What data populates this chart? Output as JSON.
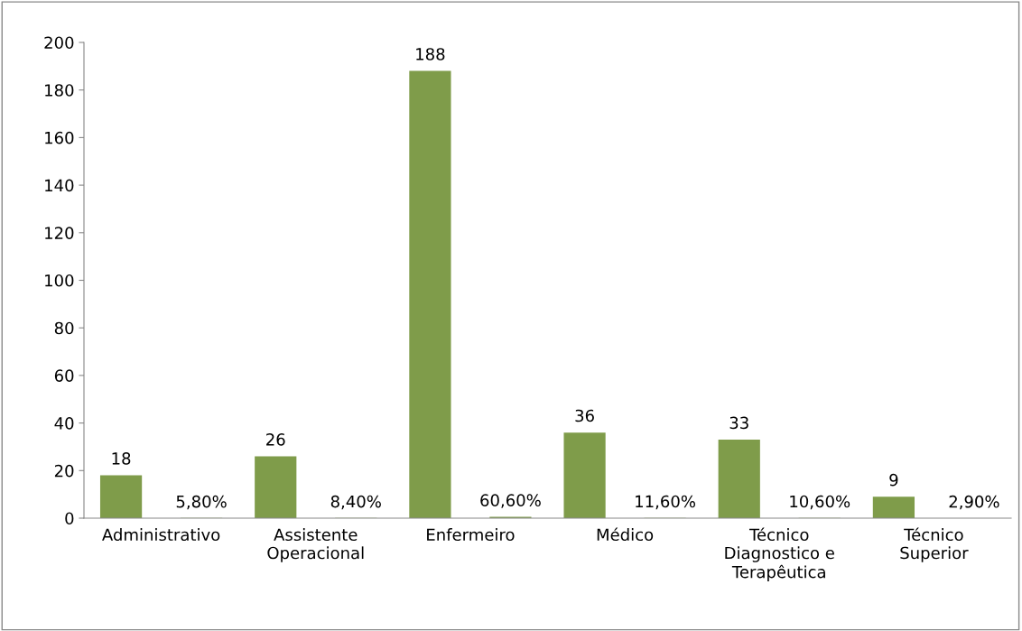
{
  "chart_data": {
    "type": "bar",
    "categories": [
      "Administrativo",
      "Assistente\nOperacional",
      "Enfermeiro",
      "Médico",
      "Técnico\nDiagnostico e\nTerapêutica",
      "Técnico\nSuperior"
    ],
    "series": [
      {
        "color": "#7f9c4a",
        "values": [
          18,
          26,
          188,
          36,
          33,
          9
        ],
        "value_labels": [
          "18",
          "26",
          "188",
          "36",
          "33",
          "9"
        ]
      },
      {
        "color": "#7f9c4a",
        "values": [
          0.058,
          0.084,
          0.606,
          0.116,
          0.106,
          0.029
        ],
        "value_labels": [
          "5,80%",
          "8,40%",
          "60,60%",
          "11,60%",
          "10,60%",
          "2,90%"
        ]
      }
    ],
    "ylim": [
      0,
      200
    ],
    "yticks": [
      0,
      20,
      40,
      60,
      80,
      100,
      120,
      140,
      160,
      180,
      200
    ],
    "grid": false,
    "legend": false
  }
}
